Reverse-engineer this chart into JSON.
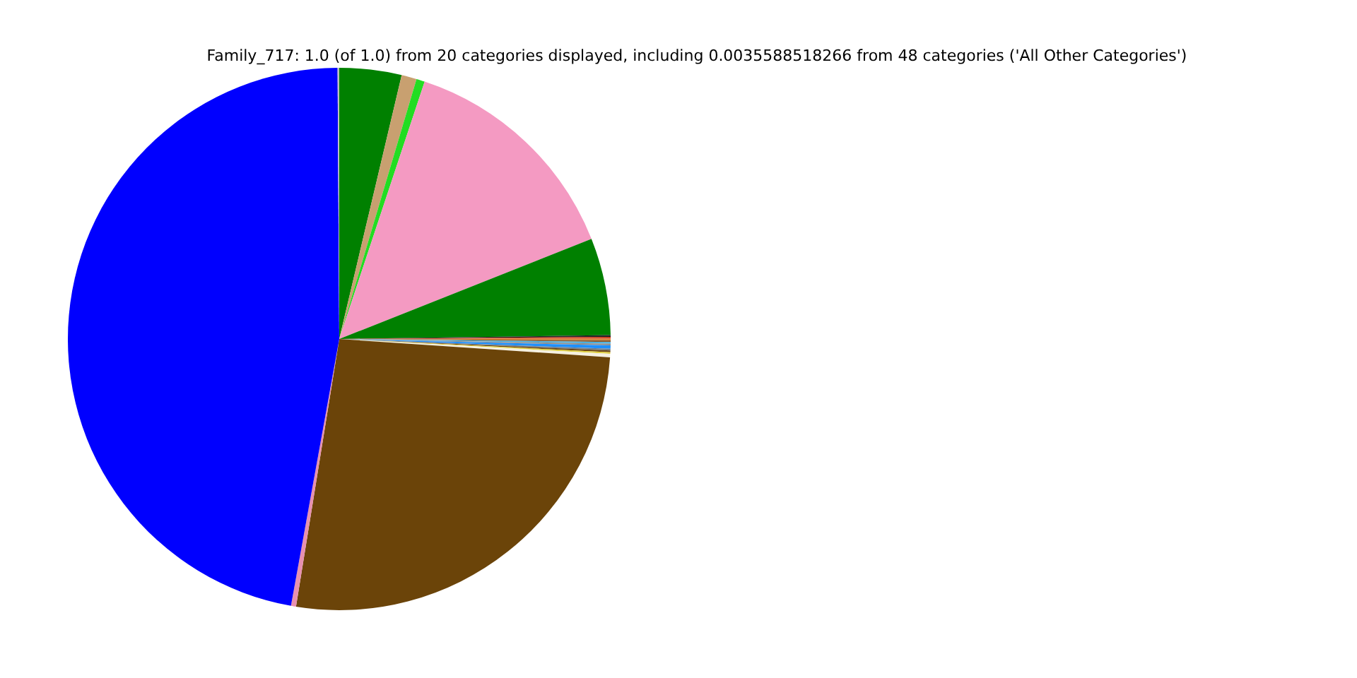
{
  "chart_data": {
    "type": "pie",
    "title": "Family_717: 1.0 (of 1.0) from 20 categories displayed, including 0.0035588518266 from 48 categories ('All Other Categories')",
    "categories": [
      null,
      null,
      null,
      null,
      null,
      null,
      null,
      null,
      null,
      null,
      null,
      null,
      null,
      null,
      null,
      null,
      null,
      null,
      null,
      null
    ],
    "values": [
      3.7,
      0.9,
      0.5,
      13.9,
      5.8,
      0.1,
      0.1,
      0.1,
      0.1,
      0.1,
      0.1,
      0.2,
      0.1,
      0.1,
      0.1,
      0.2,
      26.5,
      0.3,
      47.1,
      0.1
    ],
    "colors": [
      "#008000",
      "#c8a070",
      "#22dd22",
      "#f49ac2",
      "#008000",
      "#222222",
      "#d04020",
      "#e08030",
      "#8b5a2b",
      "#4ab0e0",
      "#909090",
      "#1e90ff",
      "#708090",
      "#6b4513",
      "#e0d040",
      "#f5f0e0",
      "#6b4409",
      "#e890b0",
      "#0000ff",
      "#c0c0c0"
    ],
    "legend": false
  }
}
